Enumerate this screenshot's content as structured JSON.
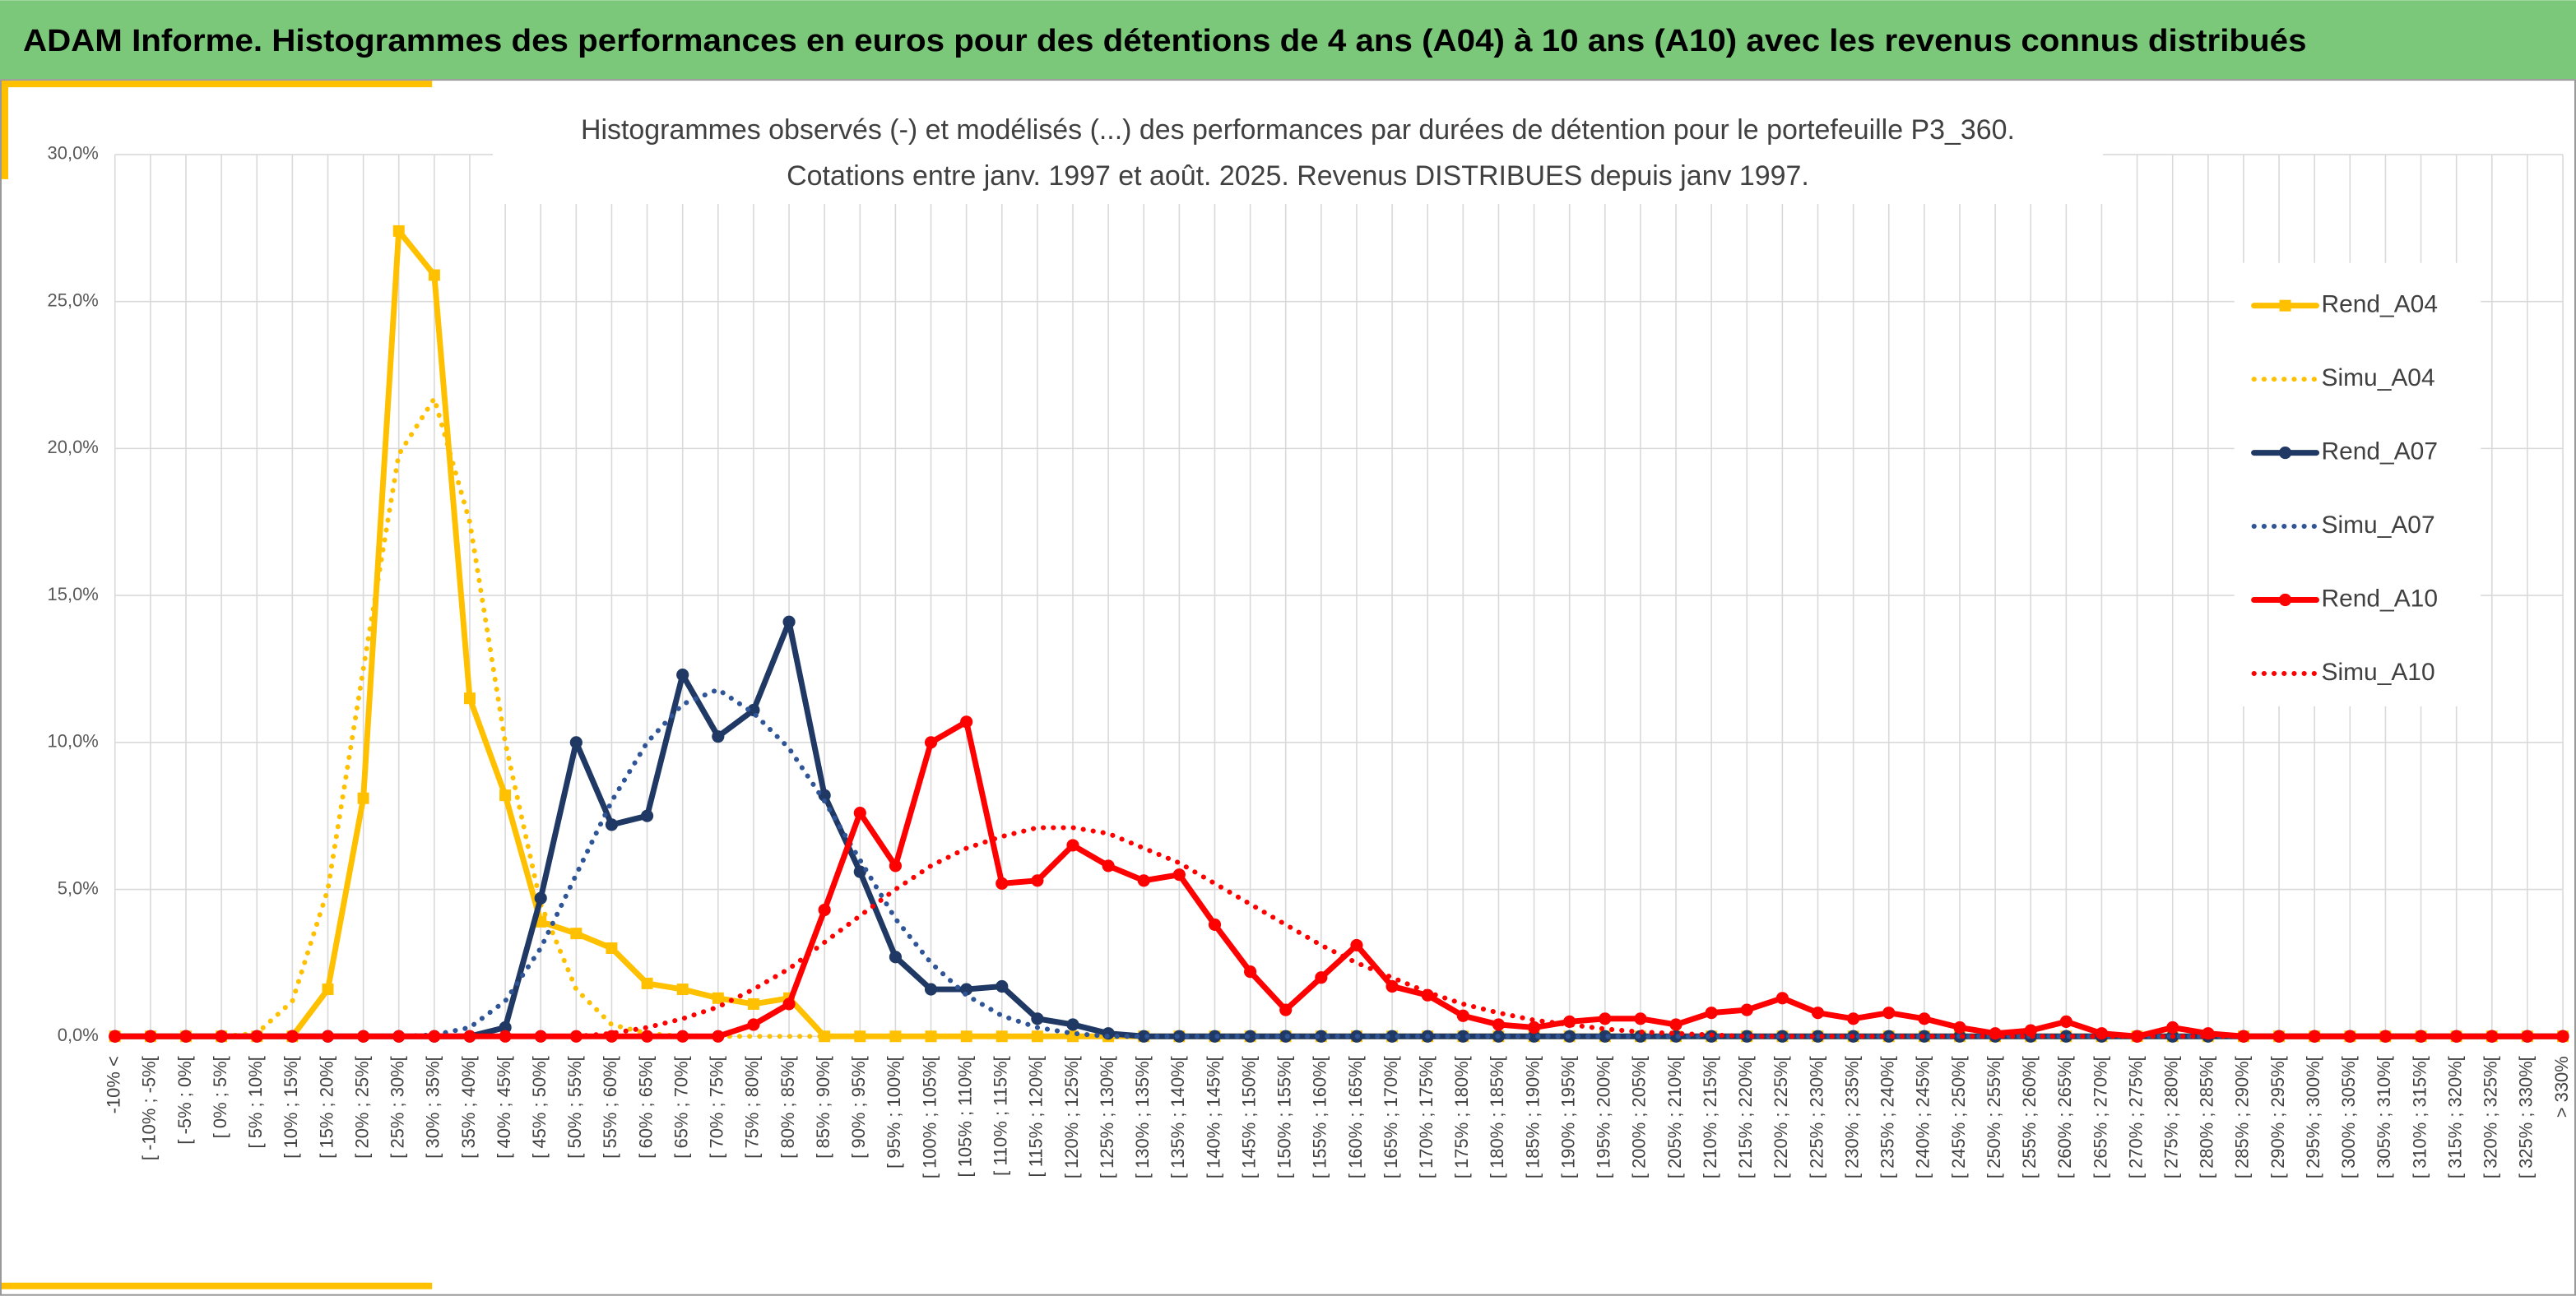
{
  "banner": "ADAM Informe. Histogrammes des performances en euros pour des détentions de 4 ans (A04) à 10 ans (A10) avec les revenus connus distribués",
  "chart_data": {
    "type": "line",
    "title": "Histogrammes observés (-) et modélisés (...) des performances par durées de détention pour le portefeuille P3_360.",
    "subtitle": "Cotations entre janv. 1997 et août. 2025. Revenus DISTRIBUES depuis janv 1997.",
    "categories": [
      "-10% <",
      "[ -10% ; -5%[",
      "[ -5% ; 0%[",
      "[ 0% ; 5%[",
      "[ 5% ; 10%[",
      "[ 10% ; 15%[",
      "[ 15% ; 20%[",
      "[ 20% ; 25%[",
      "[ 25% ; 30%[",
      "[ 30% ; 35%[",
      "[ 35% ; 40%[",
      "[ 40% ; 45%[",
      "[ 45% ; 50%[",
      "[ 50% ; 55%[",
      "[ 55% ; 60%[",
      "[ 60% ; 65%[",
      "[ 65% ; 70%[",
      "[ 70% ; 75%[",
      "[ 75% ; 80%[",
      "[ 80% ; 85%[",
      "[ 85% ; 90%[",
      "[ 90% ; 95%[",
      "[ 95% ; 100%[",
      "[ 100% ; 105%[",
      "[ 105% ; 110%[",
      "[ 110% ; 115%[",
      "[ 115% ; 120%[",
      "[ 120% ; 125%[",
      "[ 125% ; 130%[",
      "[ 130% ; 135%[",
      "[ 135% ; 140%[",
      "[ 140% ; 145%[",
      "[ 145% ; 150%[",
      "[ 150% ; 155%[",
      "[ 155% ; 160%[",
      "[ 160% ; 165%[",
      "[ 165% ; 170%[",
      "[ 170% ; 175%[",
      "[ 175% ; 180%[",
      "[ 180% ; 185%[",
      "[ 185% ; 190%[",
      "[ 190% ; 195%[",
      "[ 195% ; 200%[",
      "[ 200% ; 205%[",
      "[ 205% ; 210%[",
      "[ 210% ; 215%[",
      "[ 215% ; 220%[",
      "[ 220% ; 225%[",
      "[ 225% ; 230%[",
      "[ 230% ; 235%[",
      "[ 235% ; 240%[",
      "[ 240% ; 245%[",
      "[ 245% ; 250%[",
      "[ 250% ; 255%[",
      "[ 255% ; 260%[",
      "[ 260% ; 265%[",
      "[ 265% ; 270%[",
      "[ 270% ; 275%[",
      "[ 275% ; 280%[",
      "[ 280% ; 285%[",
      "[ 285% ; 290%[",
      "[ 290% ; 295%[",
      "[ 295% ; 300%[",
      "[ 300% ; 305%[",
      "[ 305% ; 310%[",
      "[ 310% ; 315%[",
      "[ 315% ; 320%[",
      "[ 320% ; 325%[",
      "[ 325% ; 330%[",
      "> 330%"
    ],
    "ylim": [
      0,
      30
    ],
    "yticks": [
      {
        "value": 0,
        "label": "0,0%"
      },
      {
        "value": 5,
        "label": "5,0%"
      },
      {
        "value": 10,
        "label": "10,0%"
      },
      {
        "value": 15,
        "label": "15,0%"
      },
      {
        "value": 20,
        "label": "20,0%"
      },
      {
        "value": 25,
        "label": "25,0%"
      },
      {
        "value": 30,
        "label": "30,0%"
      }
    ],
    "grid": true,
    "legend": "right",
    "series": [
      {
        "name": "Rend_A04",
        "color": "#FFC000",
        "style": "solid",
        "marker": "square",
        "values": [
          0,
          0,
          0,
          0,
          0,
          0,
          1.6,
          8.1,
          27.4,
          25.9,
          11.5,
          8.2,
          3.9,
          3.5,
          3.0,
          1.8,
          1.6,
          1.3,
          1.1,
          1.3,
          0,
          0,
          0,
          0,
          0,
          0,
          0,
          0,
          0,
          0,
          0,
          0,
          0,
          0,
          0,
          0,
          0,
          0,
          0,
          0,
          0,
          0,
          0,
          0,
          0,
          0,
          0,
          0,
          0,
          0,
          0,
          0,
          0,
          0,
          0,
          0,
          0,
          0,
          0,
          0,
          0,
          0,
          0,
          0,
          0,
          0,
          0,
          0,
          0,
          0
        ]
      },
      {
        "name": "Simu_A04",
        "color": "#FFC000",
        "style": "dotted",
        "marker": null,
        "values": [
          0,
          0,
          0,
          0,
          0.1,
          1.2,
          5.0,
          12.5,
          19.8,
          21.7,
          17.5,
          10.0,
          4.5,
          1.6,
          0.4,
          0.1,
          0,
          0,
          0,
          0,
          0,
          0,
          0,
          0,
          0,
          0,
          0,
          0,
          0,
          0,
          0,
          0,
          0,
          0,
          0,
          0,
          0,
          0,
          0,
          0,
          0,
          0,
          0,
          0,
          0,
          0,
          0,
          0,
          0,
          0,
          0,
          0,
          0,
          0,
          0,
          0,
          0,
          0,
          0,
          0,
          0,
          0,
          0,
          0,
          0,
          0,
          0,
          0,
          0,
          0
        ]
      },
      {
        "name": "Rend_A07",
        "color": "#1F3864",
        "style": "solid",
        "marker": "circle",
        "values": [
          0,
          0,
          0,
          0,
          0,
          0,
          0,
          0,
          0,
          0,
          0,
          0.3,
          4.7,
          10.0,
          7.2,
          7.5,
          12.3,
          10.2,
          11.1,
          14.1,
          8.2,
          5.6,
          2.7,
          1.6,
          1.6,
          1.7,
          0.6,
          0.4,
          0.1,
          0,
          0,
          0,
          0,
          0,
          0,
          0,
          0,
          0,
          0,
          0,
          0,
          0,
          0,
          0,
          0,
          0,
          0,
          0,
          0,
          0,
          0,
          0,
          0,
          0,
          0,
          0,
          0,
          0,
          0,
          0,
          0,
          0,
          0,
          0,
          0,
          0,
          0,
          0,
          0,
          0
        ]
      },
      {
        "name": "Simu_A07",
        "color": "#2F5597",
        "style": "dotted",
        "marker": null,
        "values": [
          0,
          0,
          0,
          0,
          0,
          0,
          0,
          0,
          0,
          0.05,
          0.3,
          1.2,
          3.0,
          5.5,
          8.0,
          10.0,
          11.3,
          11.8,
          11.0,
          9.8,
          8.0,
          6.0,
          4.0,
          2.5,
          1.4,
          0.7,
          0.3,
          0.1,
          0,
          0,
          0,
          0,
          0,
          0,
          0,
          0,
          0,
          0,
          0,
          0,
          0,
          0,
          0,
          0,
          0,
          0,
          0,
          0,
          0,
          0,
          0,
          0,
          0,
          0,
          0,
          0,
          0,
          0,
          0,
          0,
          0,
          0,
          0,
          0,
          0,
          0,
          0,
          0,
          0,
          0
        ]
      },
      {
        "name": "Rend_A10",
        "color": "#FF0000",
        "style": "solid",
        "marker": "circle",
        "values": [
          0,
          0,
          0,
          0,
          0,
          0,
          0,
          0,
          0,
          0,
          0,
          0,
          0,
          0,
          0,
          0,
          0,
          0,
          0.4,
          1.1,
          4.3,
          7.6,
          5.8,
          10.0,
          10.7,
          5.2,
          5.3,
          6.5,
          5.8,
          5.3,
          5.5,
          3.8,
          2.2,
          0.9,
          2.0,
          3.1,
          1.7,
          1.4,
          0.7,
          0.4,
          0.3,
          0.5,
          0.6,
          0.6,
          0.4,
          0.8,
          0.9,
          1.3,
          0.8,
          0.6,
          0.8,
          0.6,
          0.3,
          0.1,
          0.2,
          0.5,
          0.1,
          0,
          0.3,
          0.1,
          0,
          0,
          0,
          0,
          0,
          0,
          0,
          0,
          0,
          0
        ]
      },
      {
        "name": "Simu_A10",
        "color": "#FF0000",
        "style": "dotted",
        "marker": null,
        "values": [
          0,
          0,
          0,
          0,
          0,
          0,
          0,
          0,
          0,
          0,
          0,
          0,
          0,
          0,
          0.1,
          0.3,
          0.6,
          1.0,
          1.6,
          2.3,
          3.2,
          4.1,
          5.0,
          5.8,
          6.4,
          6.8,
          7.1,
          7.1,
          6.9,
          6.4,
          5.9,
          5.2,
          4.5,
          3.8,
          3.1,
          2.5,
          2.0,
          1.5,
          1.1,
          0.8,
          0.55,
          0.4,
          0.25,
          0.15,
          0.1,
          0.05,
          0,
          0,
          0,
          0,
          0,
          0,
          0,
          0,
          0,
          0,
          0,
          0,
          0,
          0,
          0,
          0,
          0,
          0,
          0,
          0,
          0,
          0,
          0,
          0
        ]
      }
    ]
  }
}
